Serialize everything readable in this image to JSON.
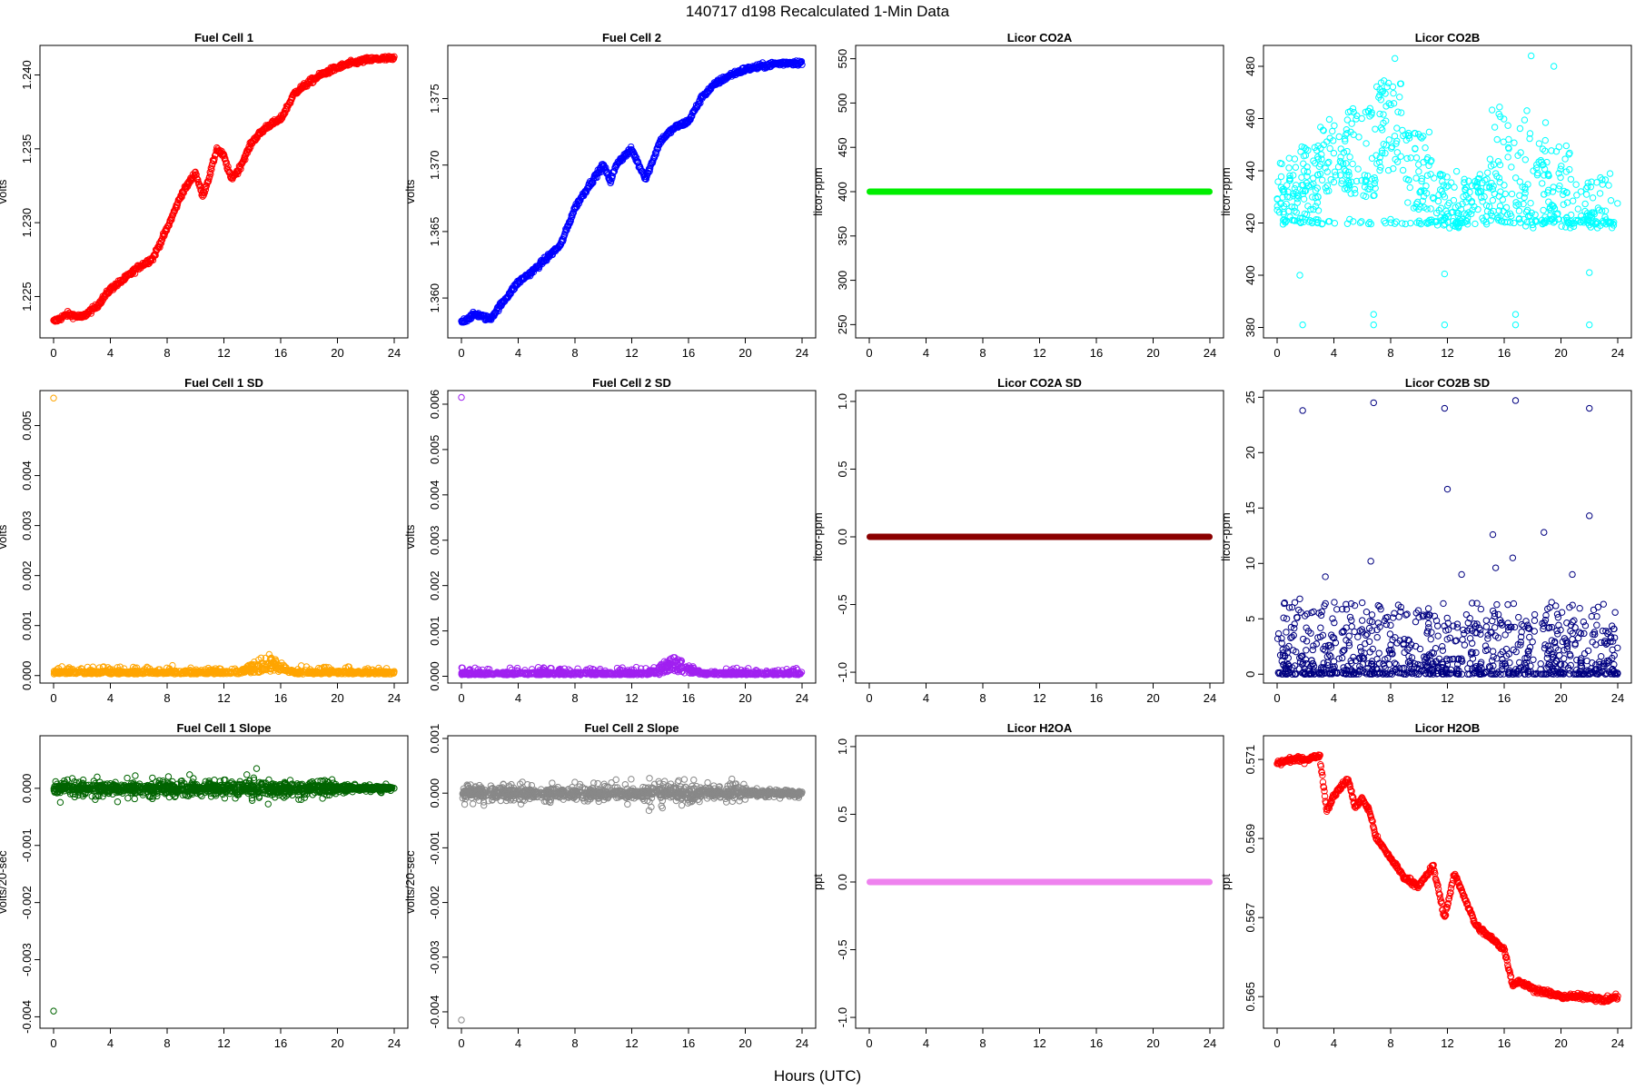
{
  "figure": {
    "title": "140717   d198   Recalculated 1-Min Data",
    "xlabel": "Hours (UTC)"
  },
  "x_ticks": [
    "0",
    "4",
    "8",
    "12",
    "16",
    "20",
    "24"
  ],
  "chart_data": [
    {
      "type": "scatter",
      "title": "Fuel Cell 1",
      "ylabel": "volts",
      "color": "#ff0000",
      "xlim": [
        0,
        24
      ],
      "ylim": [
        1.2222,
        1.242
      ],
      "yticks": [
        "1.225",
        "1.230",
        "1.235",
        "1.240"
      ],
      "trend": [
        [
          0,
          1.2233
        ],
        [
          1,
          1.2238
        ],
        [
          2,
          1.2236
        ],
        [
          3,
          1.2243
        ],
        [
          4,
          1.2255
        ],
        [
          5,
          1.2262
        ],
        [
          6,
          1.227
        ],
        [
          7,
          1.2276
        ],
        [
          8,
          1.2296
        ],
        [
          9,
          1.2319
        ],
        [
          10,
          1.2334
        ],
        [
          10.5,
          1.2318
        ],
        [
          11,
          1.2332
        ],
        [
          11.5,
          1.235
        ],
        [
          12,
          1.2345
        ],
        [
          12.5,
          1.233
        ],
        [
          13,
          1.2335
        ],
        [
          14,
          1.2355
        ],
        [
          15,
          1.2365
        ],
        [
          16,
          1.237
        ],
        [
          17,
          1.2388
        ],
        [
          18,
          1.2395
        ],
        [
          19,
          1.2401
        ],
        [
          20,
          1.2405
        ],
        [
          21,
          1.2408
        ],
        [
          22,
          1.241
        ],
        [
          23,
          1.2411
        ],
        [
          24,
          1.2411
        ]
      ]
    },
    {
      "type": "scatter",
      "title": "Fuel Cell 2",
      "ylabel": "volts",
      "color": "#0000ff",
      "xlim": [
        0,
        24
      ],
      "ylim": [
        1.357,
        1.379
      ],
      "yticks": [
        "1.360",
        "1.365",
        "1.370",
        "1.375"
      ],
      "trend": [
        [
          0,
          1.3582
        ],
        [
          1,
          1.3588
        ],
        [
          2,
          1.3584
        ],
        [
          3,
          1.3598
        ],
        [
          4,
          1.3612
        ],
        [
          5,
          1.362
        ],
        [
          6,
          1.363
        ],
        [
          7,
          1.364
        ],
        [
          8,
          1.3668
        ],
        [
          9,
          1.3685
        ],
        [
          10,
          1.37
        ],
        [
          10.5,
          1.3688
        ],
        [
          11,
          1.3702
        ],
        [
          12,
          1.3712
        ],
        [
          12.5,
          1.37
        ],
        [
          13,
          1.369
        ],
        [
          14,
          1.3718
        ],
        [
          15,
          1.3728
        ],
        [
          16,
          1.3733
        ],
        [
          17,
          1.3752
        ],
        [
          18,
          1.3762
        ],
        [
          19,
          1.3768
        ],
        [
          20,
          1.3772
        ],
        [
          21,
          1.3774
        ],
        [
          22,
          1.3776
        ],
        [
          23,
          1.3777
        ],
        [
          24,
          1.3777
        ]
      ]
    },
    {
      "type": "scatter",
      "title": "Licor CO2A",
      "ylabel": "licor-ppm",
      "color": "#00ee00",
      "xlim": [
        0,
        24
      ],
      "ylim": [
        235,
        565
      ],
      "yticks": [
        "250",
        "300",
        "350",
        "400",
        "450",
        "500",
        "550"
      ],
      "constant": 400
    },
    {
      "type": "scatter",
      "title": "Licor CO2B",
      "ylabel": "licor-ppm",
      "color": "#00ffff",
      "xlim": [
        0,
        24
      ],
      "ylim": [
        376,
        488
      ],
      "yticks": [
        "380",
        "400",
        "420",
        "440",
        "460",
        "480"
      ],
      "clusters": [
        [
          0,
          1.5,
          420,
          445
        ],
        [
          1.5,
          3,
          420,
          450
        ],
        [
          3,
          5,
          432,
          460
        ],
        [
          5,
          7,
          430,
          465
        ],
        [
          7,
          9,
          440,
          475
        ],
        [
          9,
          11,
          425,
          455
        ],
        [
          11,
          13,
          418,
          440
        ],
        [
          13,
          15,
          420,
          440
        ],
        [
          15,
          17,
          420,
          465
        ],
        [
          17,
          19,
          418,
          460
        ],
        [
          19,
          21,
          418,
          450
        ],
        [
          21,
          24,
          418,
          440
        ]
      ]
    },
    {
      "type": "scatter",
      "title": "Fuel Cell 1 SD",
      "ylabel": "volts",
      "color": "#ffa500",
      "xlim": [
        0,
        24
      ],
      "ylim": [
        -0.00015,
        0.0057
      ],
      "yticks": [
        "0.000",
        "0.001",
        "0.002",
        "0.003",
        "0.004",
        "0.005"
      ],
      "outlier": [
        0,
        0.00555
      ],
      "base": 3e-05,
      "bump": [
        15,
        0.0003
      ]
    },
    {
      "type": "scatter",
      "title": "Fuel Cell 2 SD",
      "ylabel": "volts",
      "color": "#a020f0",
      "xlim": [
        0,
        24
      ],
      "ylim": [
        -0.00015,
        0.0063
      ],
      "yticks": [
        "0.000",
        "0.001",
        "0.002",
        "0.003",
        "0.004",
        "0.005",
        "0.006"
      ],
      "outlier": [
        0,
        0.00615
      ],
      "base": 3e-05,
      "bump": [
        15,
        0.0003
      ]
    },
    {
      "type": "scatter",
      "title": "Licor CO2A SD",
      "ylabel": "licor-ppm",
      "color": "#8b0000",
      "xlim": [
        0,
        24
      ],
      "ylim": [
        -1.08,
        1.08
      ],
      "yticks": [
        "-1.0",
        "-0.5",
        "0.0",
        "0.5",
        "1.0"
      ],
      "constant": 0
    },
    {
      "type": "scatter",
      "title": "Licor CO2B SD",
      "ylabel": "licor-ppm",
      "color": "#000080",
      "xlim": [
        0,
        24
      ],
      "ylim": [
        -0.8,
        25.6
      ],
      "yticks": [
        "0",
        "5",
        "10",
        "15",
        "20",
        "25"
      ],
      "outliers": [
        [
          1.8,
          23.8
        ],
        [
          6.8,
          24.5
        ],
        [
          11.8,
          24.0
        ],
        [
          16.8,
          24.7
        ],
        [
          22,
          24.0
        ],
        [
          12,
          16.7
        ],
        [
          22,
          14.3
        ],
        [
          18.8,
          12.8
        ],
        [
          15.2,
          12.6
        ],
        [
          16.6,
          10.5
        ],
        [
          6.6,
          10.2
        ],
        [
          20.8,
          9.0
        ],
        [
          13,
          9.0
        ],
        [
          15.4,
          9.6
        ],
        [
          1.6,
          6.8
        ],
        [
          3.4,
          8.8
        ]
      ]
    },
    {
      "type": "scatter",
      "title": "Fuel Cell 1 Slope",
      "ylabel": "volts/20-sec",
      "color": "#006400",
      "xlim": [
        0,
        24
      ],
      "ylim": [
        -0.0042,
        0.00092
      ],
      "yticks": [
        "-0.004",
        "-0.003",
        "-0.002",
        "-0.001",
        "0.000"
      ],
      "outlier": [
        0,
        -0.0039
      ],
      "spread": 0.00018
    },
    {
      "type": "scatter",
      "title": "Fuel Cell 2 Slope",
      "ylabel": "volts/20-sec",
      "color": "#888888",
      "xlim": [
        0,
        24
      ],
      "ylim": [
        -0.0043,
        0.00105
      ],
      "yticks": [
        "-0.004",
        "-0.003",
        "-0.002",
        "-0.001",
        "0.000",
        "0.001"
      ],
      "outlier": [
        0,
        -0.00415
      ],
      "spread": 0.00018
    },
    {
      "type": "scatter",
      "title": "Licor H2OA",
      "ylabel": "ppt",
      "color": "#ee82ee",
      "xlim": [
        0,
        24
      ],
      "ylim": [
        -1.08,
        1.08
      ],
      "yticks": [
        "-1.0",
        "-0.5",
        "0.0",
        "0.5",
        "1.0"
      ],
      "constant": 0
    },
    {
      "type": "scatter",
      "title": "Licor H2OB",
      "ylabel": "ppt",
      "color": "#ff0000",
      "xlim": [
        0,
        24
      ],
      "ylim": [
        0.5642,
        0.5716
      ],
      "yticks": [
        "0.565",
        "0.567",
        "0.569",
        "0.571"
      ],
      "trend": [
        [
          0,
          0.5709
        ],
        [
          1,
          0.571
        ],
        [
          2,
          0.571
        ],
        [
          3,
          0.5711
        ],
        [
          3.5,
          0.5697
        ],
        [
          4,
          0.5701
        ],
        [
          5,
          0.5705
        ],
        [
          5.5,
          0.5698
        ],
        [
          6,
          0.57
        ],
        [
          6.5,
          0.5697
        ],
        [
          7,
          0.569
        ],
        [
          8,
          0.5685
        ],
        [
          9,
          0.568
        ],
        [
          10,
          0.5678
        ],
        [
          11,
          0.5683
        ],
        [
          11.8,
          0.567
        ],
        [
          12.5,
          0.5681
        ],
        [
          13,
          0.5677
        ],
        [
          14,
          0.5668
        ],
        [
          15,
          0.5665
        ],
        [
          16,
          0.5662
        ],
        [
          16.6,
          0.5653
        ],
        [
          17,
          0.5654
        ],
        [
          18,
          0.5652
        ],
        [
          19,
          0.5651
        ],
        [
          20,
          0.565
        ],
        [
          21,
          0.565
        ],
        [
          22,
          0.565
        ],
        [
          23,
          0.5649
        ],
        [
          24,
          0.565
        ]
      ]
    }
  ]
}
